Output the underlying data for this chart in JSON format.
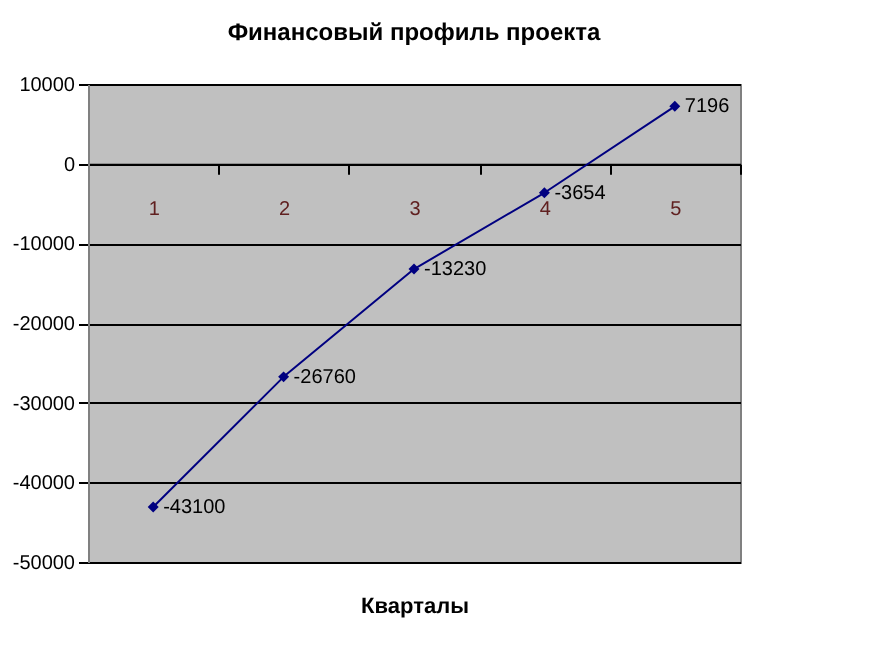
{
  "chart_data": {
    "type": "line",
    "title": "Финансовый профиль проекта",
    "xlabel": "Кварталы",
    "categories": [
      "1",
      "2",
      "3",
      "4",
      "5"
    ],
    "series": [
      {
        "color": "#000080",
        "values": [
          -43100,
          -26760,
          -13230,
          -3654,
          7196
        ]
      }
    ],
    "ylim": [
      -50000,
      10000
    ],
    "yticks": [
      -50000,
      -40000,
      -30000,
      -20000,
      -10000,
      0,
      10000
    ],
    "grid": "y",
    "marker": "diamond",
    "line_style": "solid",
    "data_labels": true,
    "legend": false
  }
}
